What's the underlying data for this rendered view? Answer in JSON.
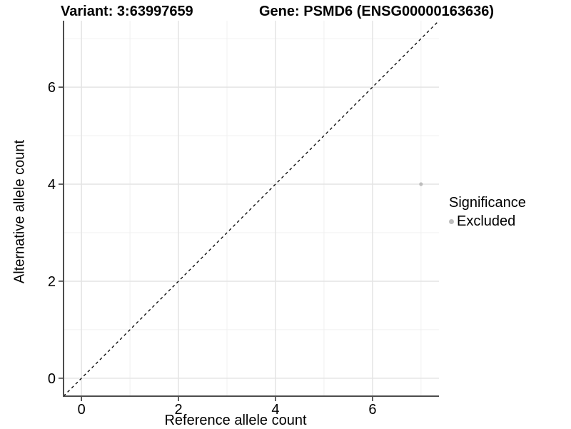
{
  "titles": {
    "variant": "Variant: 3:63997659",
    "gene": "Gene: PSMD6 (ENSG00000163636)"
  },
  "chart_data": {
    "type": "scatter",
    "xlabel": "Reference allele count",
    "ylabel": "Alternative allele count",
    "xlim": [
      -0.37,
      7.37
    ],
    "ylim": [
      -0.37,
      7.37
    ],
    "x_ticks": [
      0,
      2,
      4,
      6
    ],
    "y_ticks": [
      0,
      2,
      4,
      6
    ],
    "x_minor_gridlines": [
      1,
      3,
      5,
      7
    ],
    "y_minor_gridlines": [
      1,
      3,
      5,
      7
    ],
    "grid": true,
    "series": [
      {
        "name": "Excluded",
        "points": [
          {
            "x": 7,
            "y": 4
          }
        ],
        "color": "#bdbdbd"
      }
    ],
    "abline": {
      "slope": 1,
      "intercept": 0,
      "style": "dashed",
      "color": "#000000"
    },
    "legend": {
      "title": "Significance",
      "position": "right",
      "entries": [
        {
          "label": "Excluded",
          "color": "#bdbdbd"
        }
      ]
    },
    "colors": {
      "major_gridline": "#e4e4e4",
      "minor_gridline": "#f0f0f0",
      "axis_line": "#4d4d4d",
      "tick_mark": "#333333",
      "tick_label": "#000000"
    }
  }
}
